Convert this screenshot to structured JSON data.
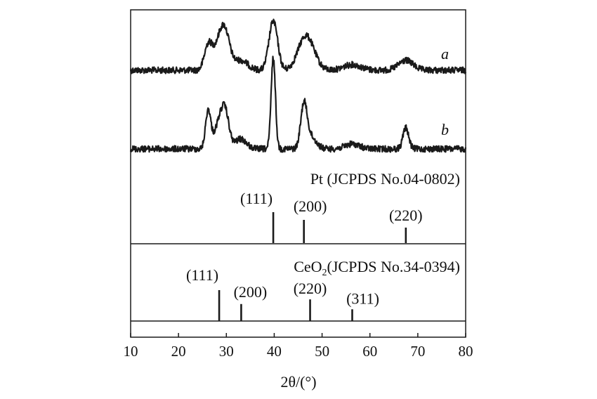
{
  "chart_data": {
    "type": "line",
    "xlabel": "2θ/(°)",
    "xlim": [
      10,
      80
    ],
    "xticks": [
      10,
      20,
      30,
      40,
      50,
      60,
      70,
      80
    ],
    "grid": false,
    "line_color": "#1a1a1a",
    "series": [
      {
        "name": "a",
        "peaks": [
          {
            "x": 26.2,
            "h": 34,
            "w": 0.8
          },
          {
            "x": 28.5,
            "h": 36,
            "w": 1.2
          },
          {
            "x": 29.8,
            "h": 40,
            "w": 1.0
          },
          {
            "x": 33.0,
            "h": 14,
            "w": 1.5
          },
          {
            "x": 39.8,
            "h": 70,
            "w": 0.9
          },
          {
            "x": 46.2,
            "h": 34,
            "w": 1.5
          },
          {
            "x": 47.5,
            "h": 20,
            "w": 1.5
          },
          {
            "x": 56.3,
            "h": 8,
            "w": 1.8
          },
          {
            "x": 67.5,
            "h": 14,
            "w": 1.5
          }
        ]
      },
      {
        "name": "b",
        "peaks": [
          {
            "x": 26.2,
            "h": 54,
            "w": 0.55
          },
          {
            "x": 28.5,
            "h": 36,
            "w": 1.0
          },
          {
            "x": 29.8,
            "h": 44,
            "w": 0.8
          },
          {
            "x": 33.0,
            "h": 14,
            "w": 1.2
          },
          {
            "x": 39.8,
            "h": 130,
            "w": 0.45
          },
          {
            "x": 46.2,
            "h": 58,
            "w": 0.65
          },
          {
            "x": 47.5,
            "h": 18,
            "w": 1.2
          },
          {
            "x": 56.3,
            "h": 7,
            "w": 1.5
          },
          {
            "x": 67.5,
            "h": 30,
            "w": 0.6
          }
        ]
      }
    ],
    "references": [
      {
        "title": "Pt (JCPDS No.04-0802)",
        "lines": [
          {
            "hkl": "(111)",
            "x": 39.8,
            "intensity": 1.0
          },
          {
            "hkl": "(200)",
            "x": 46.2,
            "intensity": 0.75
          },
          {
            "hkl": "(220)",
            "x": 67.5,
            "intensity": 0.5
          }
        ]
      },
      {
        "title_main": "CeO",
        "title_sub": "2",
        "title_rest": "(JCPDS No.34-0394)",
        "lines": [
          {
            "hkl": "(111)",
            "x": 28.5,
            "intensity": 1.0
          },
          {
            "hkl": "(200)",
            "x": 33.1,
            "intensity": 0.55
          },
          {
            "hkl": "(220)",
            "x": 47.5,
            "intensity": 0.7
          },
          {
            "hkl": "(311)",
            "x": 56.3,
            "intensity": 0.38
          }
        ]
      }
    ]
  }
}
